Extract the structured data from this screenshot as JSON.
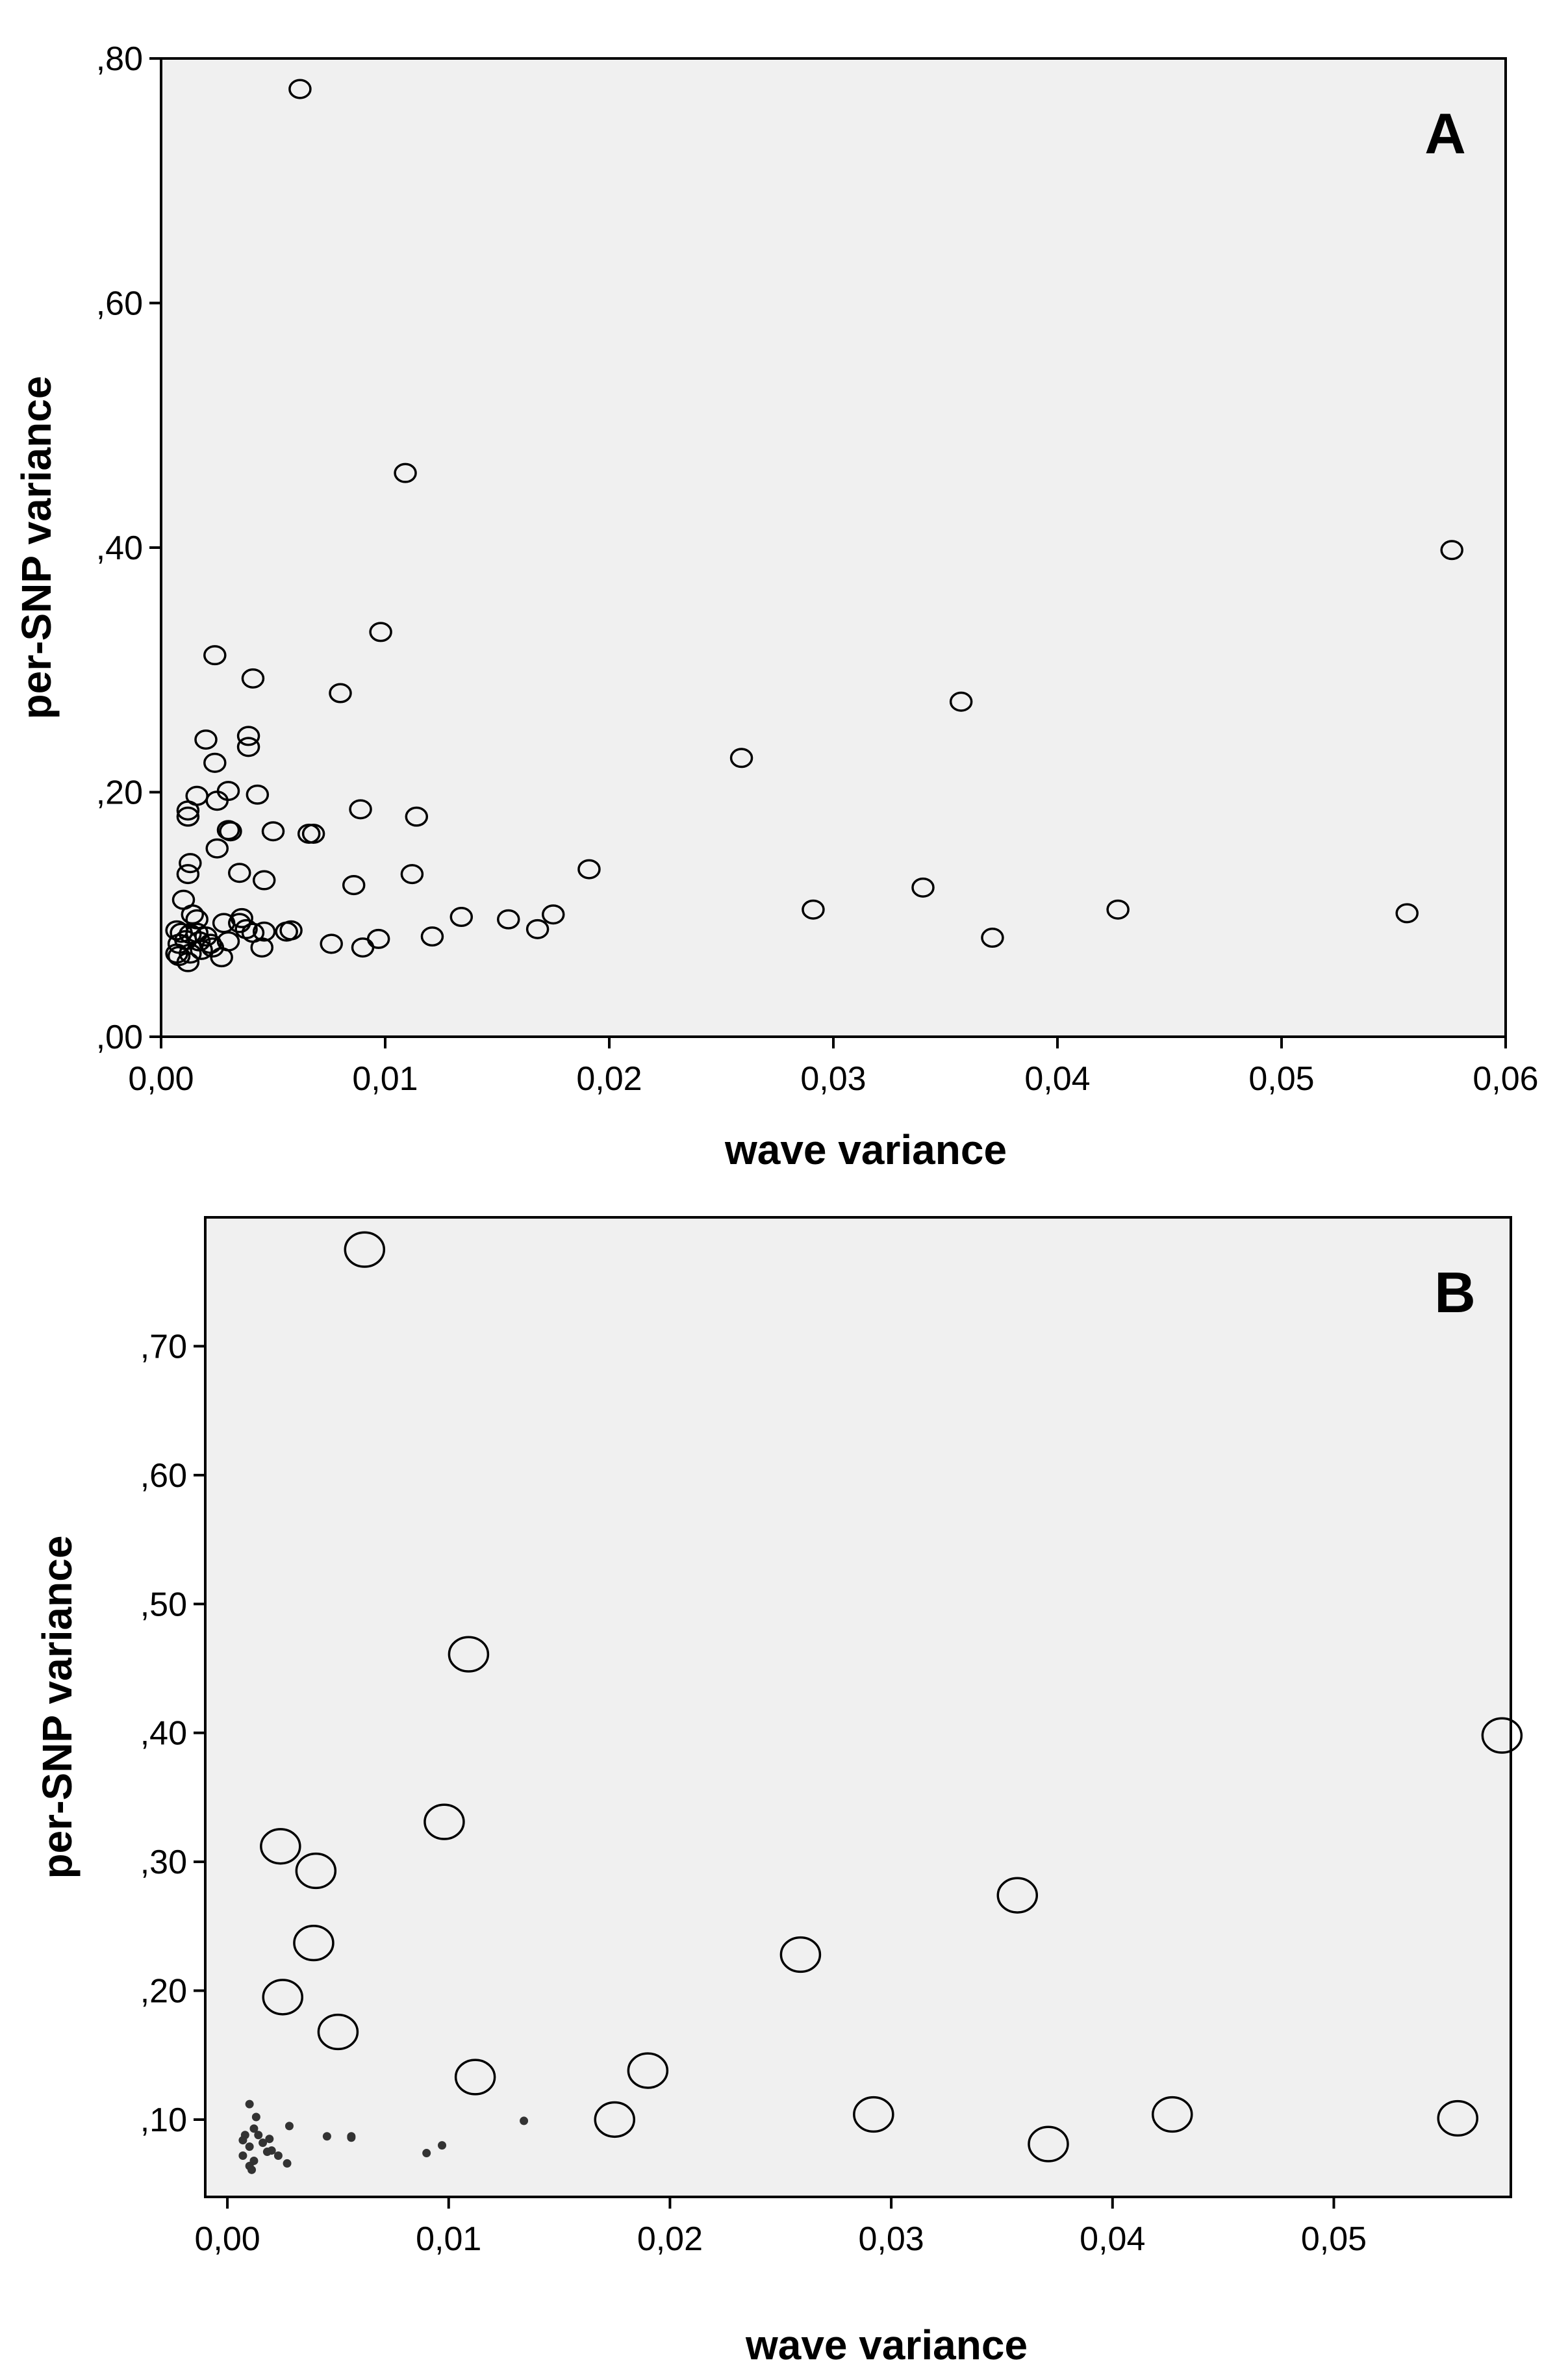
{
  "colors": {
    "plot_bg": "#f0f0f0",
    "frame": "#000000",
    "marker": "#000000"
  },
  "chart_data": [
    {
      "type": "scatter",
      "panel_label": "A",
      "xlabel": "wave variance",
      "ylabel": "per-SNP variance",
      "xlim": [
        0,
        0.06
      ],
      "ylim": [
        0,
        0.8
      ],
      "grid": false,
      "x_ticks": [
        "0,00",
        "0,01",
        "0,02",
        "0,03",
        "0,04",
        "0,05",
        "0,06"
      ],
      "y_ticks": [
        ",00",
        ",20",
        ",40",
        ",60",
        ",80"
      ],
      "points": [
        [
          0.0062,
          0.775
        ],
        [
          0.0109,
          0.461
        ],
        [
          0.0576,
          0.398
        ],
        [
          0.0098,
          0.331
        ],
        [
          0.0024,
          0.312
        ],
        [
          0.0041,
          0.293
        ],
        [
          0.008,
          0.281
        ],
        [
          0.0357,
          0.274
        ],
        [
          0.002,
          0.243
        ],
        [
          0.0039,
          0.246
        ],
        [
          0.0039,
          0.237
        ],
        [
          0.0259,
          0.228
        ],
        [
          0.0024,
          0.224
        ],
        [
          0.003,
          0.201
        ],
        [
          0.0016,
          0.197
        ],
        [
          0.0025,
          0.193
        ],
        [
          0.0043,
          0.198
        ],
        [
          0.0089,
          0.186
        ],
        [
          0.0012,
          0.185
        ],
        [
          0.0012,
          0.18
        ],
        [
          0.0114,
          0.18
        ],
        [
          0.003,
          0.169
        ],
        [
          0.0031,
          0.168
        ],
        [
          0.005,
          0.168
        ],
        [
          0.0066,
          0.166
        ],
        [
          0.0068,
          0.166
        ],
        [
          0.0025,
          0.154
        ],
        [
          0.0013,
          0.142
        ],
        [
          0.0012,
          0.133
        ],
        [
          0.0035,
          0.134
        ],
        [
          0.0046,
          0.128
        ],
        [
          0.0112,
          0.133
        ],
        [
          0.0191,
          0.137
        ],
        [
          0.0086,
          0.124
        ],
        [
          0.034,
          0.122
        ],
        [
          0.001,
          0.112
        ],
        [
          0.0291,
          0.104
        ],
        [
          0.0427,
          0.104
        ],
        [
          0.0556,
          0.101
        ],
        [
          0.0175,
          0.1
        ],
        [
          0.0134,
          0.098
        ],
        [
          0.0155,
          0.096
        ],
        [
          0.0014,
          0.1
        ],
        [
          0.0016,
          0.096
        ],
        [
          0.0028,
          0.093
        ],
        [
          0.0035,
          0.093
        ],
        [
          0.0036,
          0.097
        ],
        [
          0.0038,
          0.088
        ],
        [
          0.0041,
          0.085
        ],
        [
          0.0046,
          0.086
        ],
        [
          0.0056,
          0.086
        ],
        [
          0.0058,
          0.087
        ],
        [
          0.0168,
          0.088
        ],
        [
          0.0007,
          0.087
        ],
        [
          0.0009,
          0.085
        ],
        [
          0.0013,
          0.084
        ],
        [
          0.0016,
          0.085
        ],
        [
          0.002,
          0.082
        ],
        [
          0.0121,
          0.082
        ],
        [
          0.0371,
          0.081
        ],
        [
          0.0097,
          0.08
        ],
        [
          0.0011,
          0.079
        ],
        [
          0.0017,
          0.078
        ],
        [
          0.0022,
          0.076
        ],
        [
          0.0008,
          0.076
        ],
        [
          0.0023,
          0.073
        ],
        [
          0.0045,
          0.073
        ],
        [
          0.0076,
          0.076
        ],
        [
          0.009,
          0.073
        ],
        [
          0.0007,
          0.068
        ],
        [
          0.0013,
          0.068
        ],
        [
          0.0008,
          0.066
        ],
        [
          0.0027,
          0.065
        ],
        [
          0.0012,
          0.061
        ],
        [
          0.003,
          0.078
        ],
        [
          0.0018,
          0.071
        ]
      ]
    },
    {
      "type": "scatter",
      "panel_label": "B",
      "xlabel": "wave variance",
      "ylabel": "per-SNP variance",
      "xlim": [
        -0.001,
        0.058
      ],
      "ylim": [
        0.04,
        0.8
      ],
      "grid": false,
      "x_ticks": [
        "0,00",
        "0,01",
        "0,02",
        "0,03",
        "0,04",
        "0,05"
      ],
      "y_ticks": [
        ",10",
        ",20",
        ",30",
        ",40",
        ",50",
        ",60",
        ",70"
      ],
      "large_points": [
        [
          0.0062,
          0.775
        ],
        [
          0.0109,
          0.461
        ],
        [
          0.0576,
          0.398
        ],
        [
          0.0098,
          0.331
        ],
        [
          0.0024,
          0.312
        ],
        [
          0.004,
          0.293
        ],
        [
          0.0357,
          0.274
        ],
        [
          0.0039,
          0.237
        ],
        [
          0.0259,
          0.228
        ],
        [
          0.0025,
          0.195
        ],
        [
          0.005,
          0.168
        ],
        [
          0.0112,
          0.133
        ],
        [
          0.019,
          0.138
        ],
        [
          0.0175,
          0.1
        ],
        [
          0.0292,
          0.104
        ],
        [
          0.0427,
          0.104
        ],
        [
          0.0556,
          0.101
        ],
        [
          0.0371,
          0.081
        ]
      ],
      "small_points": [
        [
          0.001,
          0.112
        ],
        [
          0.0013,
          0.102
        ],
        [
          0.0028,
          0.095
        ],
        [
          0.0012,
          0.093
        ],
        [
          0.0008,
          0.088
        ],
        [
          0.0014,
          0.088
        ],
        [
          0.0045,
          0.087
        ],
        [
          0.0056,
          0.087
        ],
        [
          0.0056,
          0.086
        ],
        [
          0.0019,
          0.085
        ],
        [
          0.0007,
          0.084
        ],
        [
          0.0016,
          0.082
        ],
        [
          0.001,
          0.079
        ],
        [
          0.002,
          0.076
        ],
        [
          0.0023,
          0.072
        ],
        [
          0.0007,
          0.072
        ],
        [
          0.0012,
          0.068
        ],
        [
          0.0027,
          0.066
        ],
        [
          0.001,
          0.064
        ],
        [
          0.0134,
          0.099
        ],
        [
          0.0097,
          0.08
        ],
        [
          0.009,
          0.074
        ],
        [
          0.0018,
          0.075
        ],
        [
          0.0011,
          0.061
        ]
      ]
    }
  ]
}
